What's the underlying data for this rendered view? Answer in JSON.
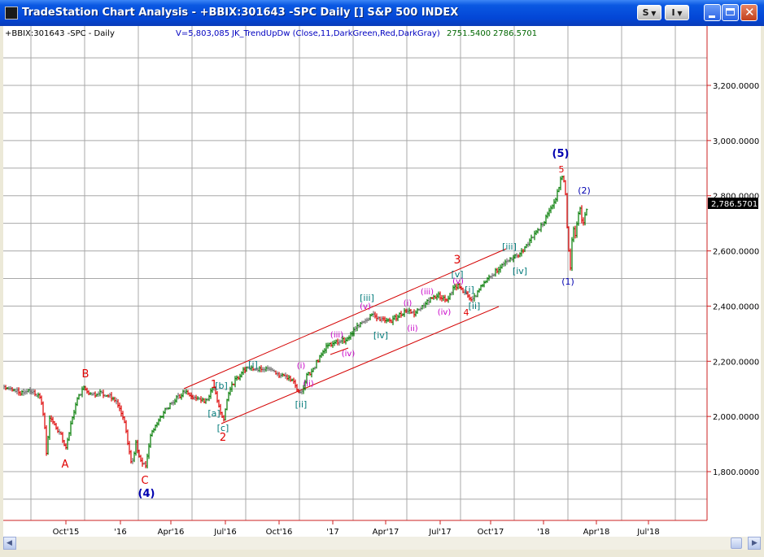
{
  "window": {
    "title": "TradeStation Chart Analysis - +BBIX:301643 -SPC Daily [] S&P 500 INDEX",
    "menu_s": "S",
    "menu_i": "I"
  },
  "header": {
    "symbol_label": "+BBIX:301643 -SPC - Daily",
    "volume_label": "V=5,803,085",
    "indicator_label": "JK_TrendUpDw (Close,11,DarkGreen,Red,DarkGray)",
    "indicator_value_1": "2751.5400",
    "indicator_value_2": "2786.5701"
  },
  "price_axis": {
    "ticks": [
      "3,200.0000",
      "3,000.0000",
      "2,800.0000",
      "2,600.0000",
      "2,400.0000",
      "2,200.0000",
      "2,000.0000",
      "1,800.0000"
    ],
    "last_price": "2,786.5701"
  },
  "date_axis": {
    "ticks": [
      "Oct'15",
      "'16",
      "Apr'16",
      "Jul'16",
      "Oct'16",
      "'17",
      "Apr'17",
      "Jul'17",
      "Oct'17",
      "'18",
      "Apr'18",
      "Jul'18"
    ]
  },
  "wave_labels": {
    "red": [
      "B",
      "A",
      "C",
      "1",
      "2",
      "3",
      "4",
      "5"
    ],
    "blue": [
      "(4)",
      "(5)",
      "(1)",
      "(2)"
    ],
    "teal": [
      "[a]",
      "[b]",
      "[c]",
      "[i]",
      "[ii]",
      "[iii]",
      "[iv]",
      "[v]",
      "[i]",
      "[ii]",
      "[iii]",
      "[iv]"
    ],
    "magenta": [
      "(i)",
      "(ii)",
      "(iii)",
      "(iv)",
      "(v)",
      "(i)",
      "(ii)",
      "(iii)",
      "(iv)",
      "(v)"
    ]
  },
  "colors": {
    "up": "#007a00",
    "down": "#dd0000",
    "neutral": "#707070",
    "grid": "#a8a8a8",
    "channel": "#d40000",
    "wave_red": "#e00000",
    "wave_blue": "#0000b0",
    "wave_teal": "#007a7a",
    "wave_magenta": "#c800c8"
  }
}
